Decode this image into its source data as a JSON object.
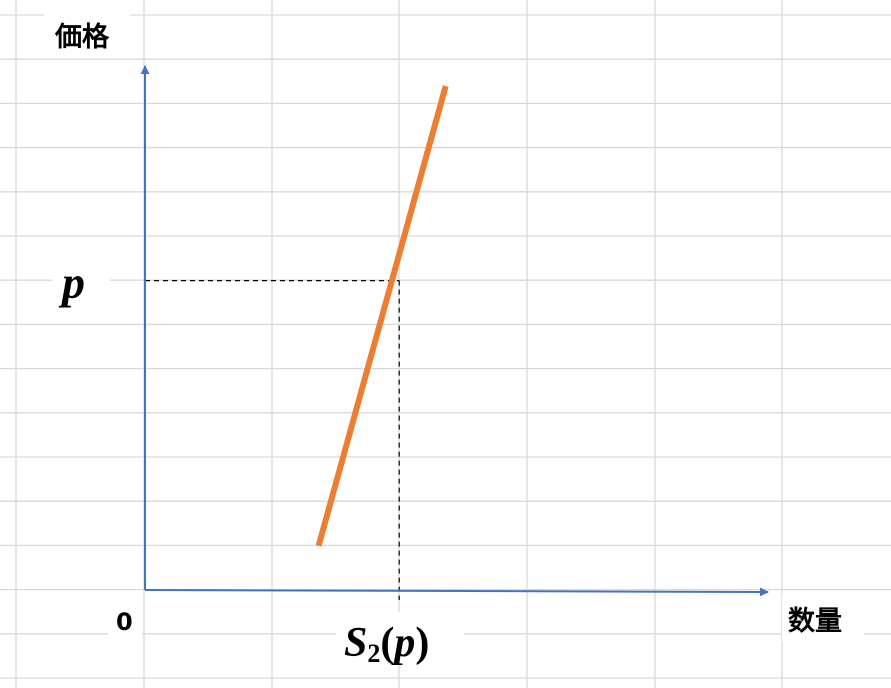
{
  "chart_data": {
    "type": "line",
    "ylabel": "価格",
    "xlabel": "数量",
    "origin_label": "0",
    "grid": true,
    "axis_color": "#4472C4",
    "grid_color": "#D9D9D9",
    "guide_color": "#000000",
    "xlim": [
      0,
      10
    ],
    "ylim": [
      0,
      10
    ],
    "series": [
      {
        "color": "#ED7D31",
        "x": [
          2.8,
          4.85
        ],
        "y": [
          1.0,
          11.4
        ]
      }
    ],
    "price_point": {
      "x": 4.1,
      "y": 7.0
    },
    "price_label": "p",
    "quantity_label": {
      "func": "S",
      "subscript": "2",
      "arg": "p"
    }
  }
}
